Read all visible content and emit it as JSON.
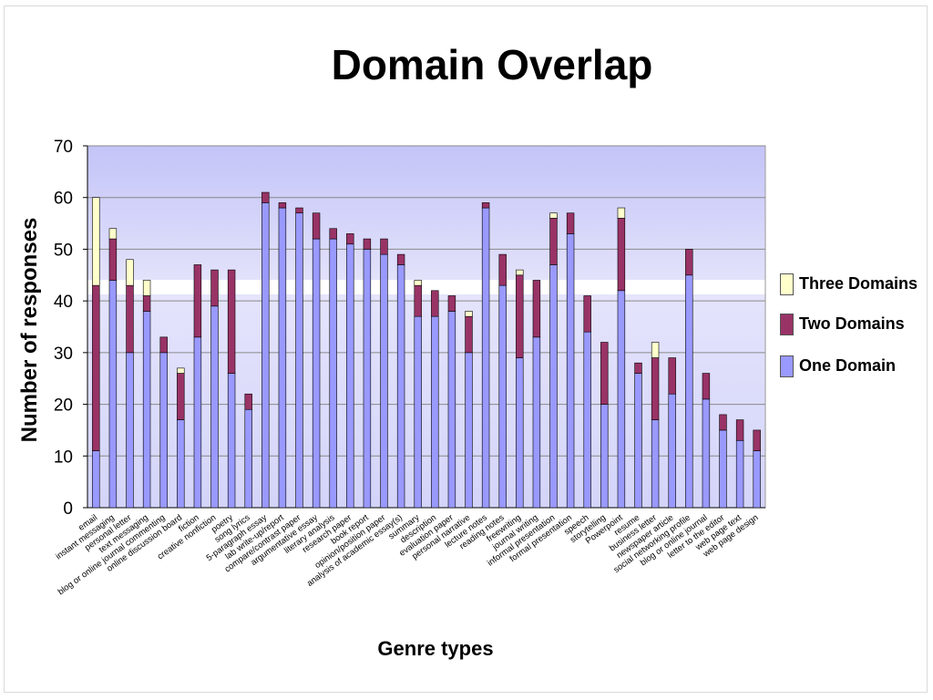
{
  "chart_data": {
    "type": "bar",
    "stacked": true,
    "title": "Domain Overlap",
    "xlabel": "Genre types",
    "ylabel": "Number of responses",
    "ylim": [
      0,
      70
    ],
    "yticks": [
      0,
      10,
      20,
      30,
      40,
      50,
      60,
      70
    ],
    "grid": true,
    "legend_position": "right",
    "categories": [
      "email",
      "instant messaging",
      "personal letter",
      "text messaging",
      "blog or online journal commenting",
      "online discussion board",
      "fiction",
      "creative nonfiction",
      "poetry",
      "song lyrics",
      "5-paragraph essay",
      "lab write-up/report",
      "compare/contrast paper",
      "argumentative essay",
      "literary analysis",
      "research paper",
      "book report",
      "opinion/position paper",
      "analysis of academic essay(s)",
      "summary",
      "description",
      "evaluation paper",
      "personal narrative",
      "lecture notes",
      "reading notes",
      "freewriting",
      "journal writing",
      "informal presentation",
      "formal presentation",
      "speech",
      "storytelling",
      "Powerpoint",
      "resume",
      "business letter",
      "newspaper article",
      "social networking profile",
      "blog or online journal",
      "letter to the editor",
      "web page text",
      "web page design"
    ],
    "series": [
      {
        "name": "One Domain",
        "color": "#9999ff",
        "values": [
          11,
          44,
          30,
          38,
          30,
          17,
          33,
          39,
          26,
          19,
          59,
          58,
          57,
          52,
          52,
          51,
          50,
          49,
          47,
          37,
          37,
          38,
          30,
          58,
          43,
          29,
          33,
          47,
          53,
          34,
          20,
          42,
          26,
          17,
          22,
          45,
          21,
          15,
          13,
          11
        ]
      },
      {
        "name": "Two Domains",
        "color": "#993366",
        "values": [
          32,
          8,
          13,
          3,
          3,
          9,
          14,
          7,
          20,
          3,
          2,
          1,
          1,
          5,
          2,
          2,
          2,
          3,
          2,
          6,
          5,
          3,
          7,
          1,
          6,
          16,
          11,
          9,
          4,
          7,
          12,
          14,
          2,
          12,
          7,
          5,
          5,
          3,
          4,
          4
        ]
      },
      {
        "name": "Three Domains",
        "color": "#ffffcc",
        "values": [
          17,
          2,
          5,
          3,
          0,
          1,
          0,
          0,
          0,
          0,
          0,
          0,
          0,
          0,
          0,
          0,
          0,
          0,
          0,
          1,
          0,
          0,
          1,
          0,
          0,
          1,
          0,
          1,
          0,
          0,
          0,
          2,
          0,
          3,
          0,
          0,
          0,
          0,
          0,
          0
        ]
      }
    ]
  }
}
